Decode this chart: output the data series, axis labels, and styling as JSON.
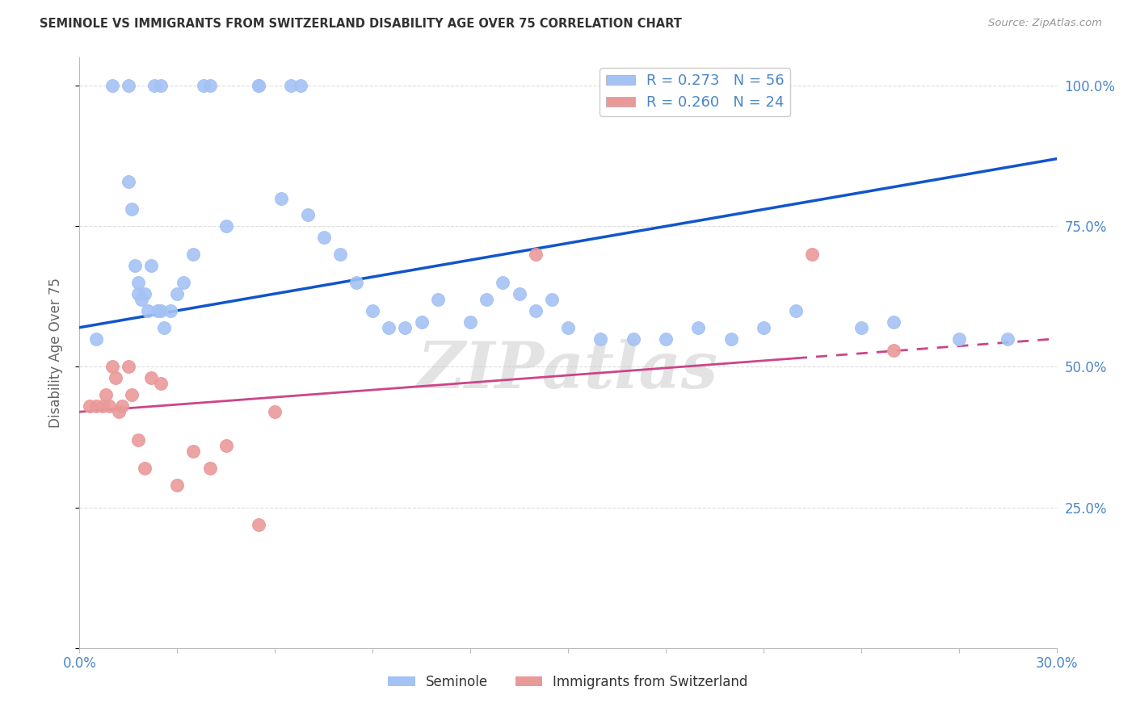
{
  "title": "SEMINOLE VS IMMIGRANTS FROM SWITZERLAND DISABILITY AGE OVER 75 CORRELATION CHART",
  "source": "Source: ZipAtlas.com",
  "ylabel": "Disability Age Over 75",
  "xmin": 0.0,
  "xmax": 30.0,
  "ymin": 0.0,
  "ymax": 105.0,
  "ytick_vals": [
    0,
    25,
    50,
    75,
    100
  ],
  "ytick_labels": [
    "",
    "25.0%",
    "50.0%",
    "75.0%",
    "100.0%"
  ],
  "xtick_vals": [
    0,
    3,
    6,
    9,
    12,
    15,
    18,
    21,
    24,
    27,
    30
  ],
  "xtick_edge_labels": [
    "0.0%",
    "30.0%"
  ],
  "legend_label1": "R = 0.273   N = 56",
  "legend_label2": "R = 0.260   N = 24",
  "legend_label1_short": "Seminole",
  "legend_label2_short": "Immigrants from Switzerland",
  "blue_color": "#a4c2f4",
  "blue_line_color": "#1155cc",
  "pink_color": "#ea9999",
  "pink_line_color": "#cc4488",
  "blue_x": [
    1.0,
    1.5,
    2.3,
    2.5,
    3.8,
    4.0,
    5.5,
    5.5,
    6.5,
    6.8,
    1.5,
    1.6,
    1.7,
    1.8,
    1.8,
    1.9,
    2.0,
    2.1,
    2.2,
    2.4,
    2.5,
    2.6,
    2.8,
    3.0,
    3.2,
    3.5,
    4.5,
    6.2,
    7.0,
    7.5,
    8.0,
    8.5,
    9.0,
    9.5,
    10.0,
    10.5,
    11.0,
    12.0,
    12.5,
    13.0,
    13.5,
    14.0,
    14.5,
    15.0,
    16.0,
    17.0,
    18.0,
    19.0,
    20.0,
    21.0,
    22.0,
    24.0,
    25.0,
    27.0,
    28.5,
    0.5
  ],
  "blue_y": [
    100,
    100,
    100,
    100,
    100,
    100,
    100,
    100,
    100,
    100,
    83,
    78,
    68,
    65,
    63,
    62,
    63,
    60,
    68,
    60,
    60,
    57,
    60,
    63,
    65,
    70,
    75,
    80,
    77,
    73,
    70,
    65,
    60,
    57,
    57,
    58,
    62,
    58,
    62,
    65,
    63,
    60,
    62,
    57,
    55,
    55,
    55,
    57,
    55,
    57,
    60,
    57,
    58,
    55,
    55,
    55
  ],
  "pink_x": [
    0.3,
    0.5,
    0.7,
    0.8,
    0.9,
    1.0,
    1.1,
    1.2,
    1.3,
    1.5,
    1.6,
    1.8,
    2.0,
    2.2,
    2.5,
    3.0,
    3.5,
    4.0,
    4.5,
    5.5,
    6.0,
    14.0,
    22.5,
    25.0
  ],
  "pink_y": [
    43,
    43,
    43,
    45,
    43,
    50,
    48,
    42,
    43,
    50,
    45,
    37,
    32,
    48,
    47,
    29,
    35,
    32,
    36,
    22,
    42,
    70,
    70,
    53
  ],
  "pink_dash_start": 22.5,
  "blue_trend_x0": 0.0,
  "blue_trend_x1": 30.0,
  "blue_trend_y0": 57.0,
  "blue_trend_y1": 87.0,
  "pink_trend_x0": 0.0,
  "pink_trend_x1": 30.0,
  "pink_trend_y0": 42.0,
  "pink_trend_y1": 55.0,
  "pink_solid_end": 22.0,
  "watermark": "ZIPatlas",
  "background_color": "#ffffff",
  "grid_color": "#dddddd",
  "title_color": "#333333",
  "tick_color": "#4a86c8"
}
